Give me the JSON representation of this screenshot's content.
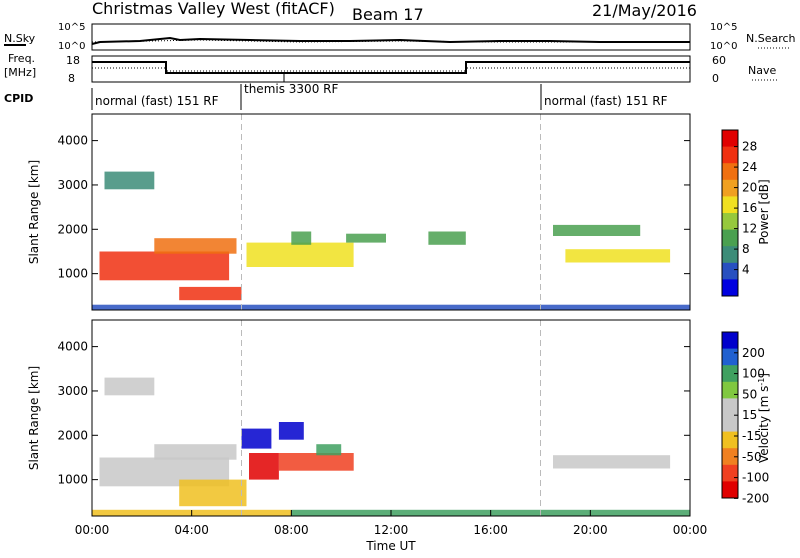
{
  "header": {
    "station": "Christmas Valley West (fitACF)",
    "beam": "Beam 17",
    "date": "21/May/2016"
  },
  "summary_panels": {
    "nsky_label": "N.Sky",
    "nsky_top_tick": "10^5",
    "nsky_bottom_tick": "10^0",
    "nsearch_label": "N.Search",
    "nsearch_top_tick": "10^5",
    "nsearch_bottom_tick": "10^0",
    "freq_label": "Freq.",
    "freq_unit": "[MHz]",
    "freq_top_tick": "18",
    "freq_bottom_tick": "8",
    "nave_label": "Nave",
    "nave_top_tick": "60",
    "nave_bottom_tick": "0",
    "cpid_label": "CPID",
    "cpid_segments": [
      {
        "label": "normal (fast) 151 RF",
        "start_hour": 0
      },
      {
        "label": "themis 3300 RF",
        "start_hour": 6
      },
      {
        "label": "normal (fast) 151 RF",
        "start_hour": 18
      }
    ]
  },
  "colors": {
    "power_scale": [
      "#0000e0",
      "#2850c0",
      "#3c8c78",
      "#4aa050",
      "#96c83c",
      "#f0e020",
      "#f0a020",
      "#f07010",
      "#f03010",
      "#e00000"
    ],
    "velocity_scale": [
      "#0000cc",
      "#2060d0",
      "#40a060",
      "#80c840",
      "#c8c8c8",
      "#c8c8c8",
      "#f0c020",
      "#f08020",
      "#f04020",
      "#e00000"
    ]
  },
  "chart_data": [
    {
      "type": "heatmap",
      "name": "power",
      "ylabel": "Slant Range [km]",
      "colorbar_label": "Power [dB]",
      "colorbar_ticks": [
        "28",
        "24",
        "20",
        "16",
        "12",
        "8",
        "4"
      ],
      "colorbar_range": [
        0,
        32
      ],
      "xlim_hours": [
        0,
        24
      ],
      "ylim": [
        180,
        4600
      ],
      "ytick_labels": [
        "1000",
        "2000",
        "3000",
        "4000"
      ],
      "ytick_values": [
        1000,
        2000,
        3000,
        4000
      ],
      "dashed_markers_hours": [
        6,
        18
      ],
      "regions": [
        {
          "t0": 0.3,
          "t1": 5.5,
          "r0": 850,
          "r1": 1500,
          "value": 26
        },
        {
          "t0": 2.5,
          "t1": 5.8,
          "r0": 1450,
          "r1": 1800,
          "value": 24
        },
        {
          "t0": 3.5,
          "t1": 6.0,
          "r0": 400,
          "r1": 700,
          "value": 26
        },
        {
          "t0": 6.2,
          "t1": 10.5,
          "r0": 1150,
          "r1": 1700,
          "value": 18
        },
        {
          "t0": 8.0,
          "t1": 8.8,
          "r0": 1650,
          "r1": 1950,
          "value": 12
        },
        {
          "t0": 10.2,
          "t1": 11.8,
          "r0": 1700,
          "r1": 1900,
          "value": 10
        },
        {
          "t0": 13.5,
          "t1": 15.0,
          "r0": 1650,
          "r1": 1950,
          "value": 10
        },
        {
          "t0": 19.0,
          "t1": 23.2,
          "r0": 1250,
          "r1": 1550,
          "value": 16
        },
        {
          "t0": 18.5,
          "t1": 22.0,
          "r0": 1850,
          "r1": 2100,
          "value": 10
        },
        {
          "t0": 0.5,
          "t1": 2.5,
          "r0": 2900,
          "r1": 3300,
          "value": 8
        },
        {
          "t0": 0.0,
          "t1": 24.0,
          "r0": 180,
          "r1": 300,
          "value": 6
        }
      ]
    },
    {
      "type": "heatmap",
      "name": "velocity",
      "ylabel": "Slant Range [km]",
      "xlabel": "Time UT",
      "colorbar_label": "Velocity [m s^-1]",
      "colorbar_ticks": [
        "200",
        "100",
        "50",
        "15",
        "-15",
        "-50",
        "-100",
        "-200"
      ],
      "xlim_hours": [
        0,
        24
      ],
      "xtick_labels": [
        "00:00",
        "04:00",
        "08:00",
        "12:00",
        "16:00",
        "20:00",
        "00:00"
      ],
      "xtick_hours": [
        0,
        4,
        8,
        12,
        16,
        20,
        24
      ],
      "ylim": [
        180,
        4600
      ],
      "ytick_labels": [
        "1000",
        "2000",
        "3000",
        "4000"
      ],
      "ytick_values": [
        1000,
        2000,
        3000,
        4000
      ],
      "dashed_markers_hours": [
        6,
        18
      ],
      "regions": [
        {
          "t0": 0.3,
          "t1": 5.5,
          "r0": 850,
          "r1": 1500,
          "value": 0
        },
        {
          "t0": 2.5,
          "t1": 5.8,
          "r0": 1450,
          "r1": 1800,
          "value": 0
        },
        {
          "t0": 3.5,
          "t1": 6.2,
          "r0": 400,
          "r1": 1000,
          "value": -40
        },
        {
          "t0": 6.0,
          "t1": 7.2,
          "r0": 1700,
          "r1": 2150,
          "value": 200
        },
        {
          "t0": 7.5,
          "t1": 8.5,
          "r0": 1900,
          "r1": 2300,
          "value": 200
        },
        {
          "t0": 6.3,
          "t1": 7.5,
          "r0": 1000,
          "r1": 1600,
          "value": -200
        },
        {
          "t0": 7.5,
          "t1": 10.5,
          "r0": 1200,
          "r1": 1600,
          "value": -100
        },
        {
          "t0": 9.0,
          "t1": 10.0,
          "r0": 1550,
          "r1": 1800,
          "value": 60
        },
        {
          "t0": 18.5,
          "t1": 23.2,
          "r0": 1250,
          "r1": 1550,
          "value": 0
        },
        {
          "t0": 0.5,
          "t1": 2.5,
          "r0": 2900,
          "r1": 3300,
          "value": 0
        },
        {
          "t0": 0.0,
          "t1": 8.0,
          "r0": 180,
          "r1": 320,
          "value": -40
        },
        {
          "t0": 8.0,
          "t1": 24.0,
          "r0": 180,
          "r1": 320,
          "value": 30
        }
      ]
    }
  ]
}
